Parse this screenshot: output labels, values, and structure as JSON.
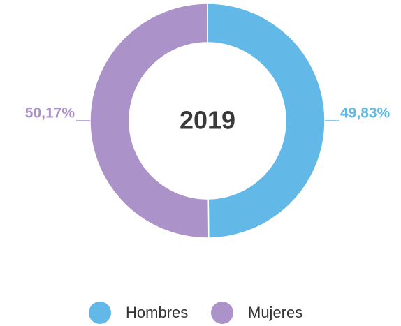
{
  "chart_data": {
    "type": "donut",
    "center_text": "2019",
    "categories": [
      "Hombres",
      "Mujeres"
    ],
    "values": [
      49.83,
      50.17
    ],
    "value_labels": [
      "49,83%",
      "50,17%"
    ],
    "colors": [
      "#62b8e6",
      "#ab92c9"
    ],
    "legend": "bottom"
  }
}
